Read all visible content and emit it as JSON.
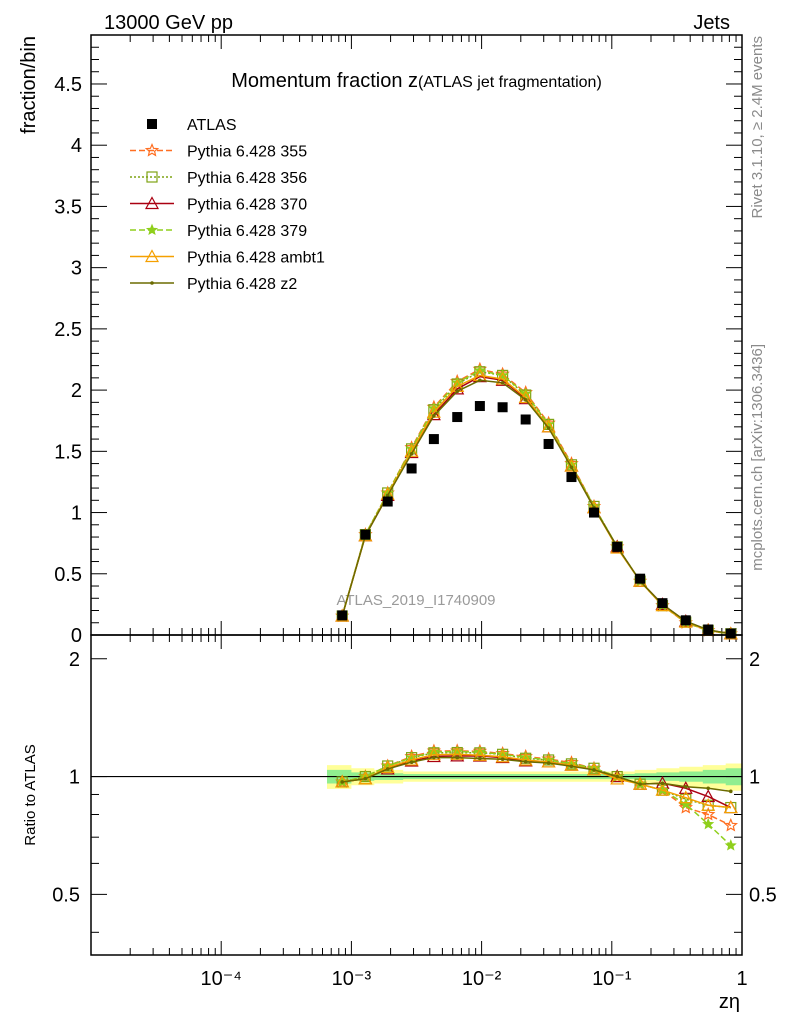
{
  "header": {
    "left": "13000 GeV pp",
    "right": "Jets"
  },
  "side_labels": {
    "rivet": "Rivet 3.1.10, ≥ 2.4M events",
    "mcplots": "mcplots.cern.ch [arXiv:1306.3436]"
  },
  "chart_data": {
    "type": "line",
    "title": "Momentum fraction z",
    "subtitle": "(ATLAS jet fragmentation)",
    "watermark": "ATLAS_2019_I1740909",
    "xlabel": "zη",
    "x_scale": "log",
    "xlim": [
      1e-05,
      1
    ],
    "x_tick_labels": [
      "10⁻⁴",
      "10⁻³",
      "10⁻²",
      "10⁻¹",
      "1"
    ],
    "x_tick_values": [
      0.0001,
      0.001,
      0.01,
      0.1,
      1
    ],
    "legend_position": "top-left",
    "x": [
      0.00085,
      0.00128,
      0.0019,
      0.0029,
      0.0043,
      0.0065,
      0.0097,
      0.0145,
      0.0218,
      0.0327,
      0.049,
      0.073,
      0.11,
      0.165,
      0.245,
      0.37,
      0.55,
      0.82
    ],
    "main": {
      "ylabel": "fraction/bin",
      "ylim": [
        0,
        4.9
      ],
      "y_ticks": [
        0,
        0.5,
        1,
        1.5,
        2,
        2.5,
        3,
        3.5,
        4,
        4.5
      ],
      "y_tick_labels": [
        "0",
        "0.5",
        "1",
        "1.5",
        "2",
        "2.5",
        "3",
        "3.5",
        "4",
        "4.5"
      ],
      "data": {
        "name": "ATLAS",
        "values": [
          0.16,
          0.82,
          1.09,
          1.36,
          1.6,
          1.78,
          1.87,
          1.86,
          1.76,
          1.56,
          1.29,
          1.0,
          0.72,
          0.46,
          0.26,
          0.12,
          0.045,
          0.012
        ]
      },
      "series": [
        {
          "name": "Pythia 6.428 355",
          "color": "#ff6f22",
          "dash": "6,3",
          "marker": "star-open",
          "values": [
            0.155,
            0.82,
            1.16,
            1.53,
            1.86,
            2.07,
            2.17,
            2.13,
            1.98,
            1.73,
            1.4,
            1.05,
            0.72,
            0.44,
            0.24,
            0.1,
            0.036,
            0.009
          ]
        },
        {
          "name": "Pythia 6.428 356",
          "color": "#7fa314",
          "dash": "2,2",
          "marker": "square-open",
          "values": [
            0.155,
            0.82,
            1.16,
            1.52,
            1.84,
            2.05,
            2.15,
            2.12,
            1.96,
            1.72,
            1.39,
            1.05,
            0.72,
            0.44,
            0.24,
            0.105,
            0.038,
            0.01
          ]
        },
        {
          "name": "Pythia 6.428 370",
          "color": "#aa0011",
          "dash": "",
          "marker": "triangle-open",
          "values": [
            0.155,
            0.81,
            1.14,
            1.49,
            1.8,
            2.01,
            2.11,
            2.08,
            1.93,
            1.7,
            1.38,
            1.04,
            0.72,
            0.44,
            0.25,
            0.112,
            0.04,
            0.01
          ]
        },
        {
          "name": "Pythia 6.428 379",
          "color": "#8fcf1c",
          "dash": "6,3",
          "marker": "star-filled",
          "values": [
            0.155,
            0.82,
            1.16,
            1.52,
            1.85,
            2.06,
            2.16,
            2.12,
            1.97,
            1.72,
            1.39,
            1.05,
            0.72,
            0.44,
            0.24,
            0.102,
            0.034,
            0.008
          ]
        },
        {
          "name": "Pythia 6.428 ambt1",
          "color": "#f5a000",
          "dash": "",
          "marker": "triangle-open",
          "values": [
            0.155,
            0.81,
            1.15,
            1.5,
            1.82,
            2.03,
            2.12,
            2.09,
            1.94,
            1.7,
            1.38,
            1.04,
            0.71,
            0.44,
            0.24,
            0.106,
            0.038,
            0.01
          ]
        },
        {
          "name": "Pythia 6.428 z2",
          "color": "#6b6b00",
          "dash": "",
          "marker": "dot",
          "values": [
            0.155,
            0.81,
            1.14,
            1.48,
            1.79,
            1.99,
            2.08,
            2.06,
            1.92,
            1.69,
            1.37,
            1.04,
            0.72,
            0.44,
            0.25,
            0.113,
            0.042,
            0.011
          ]
        }
      ]
    },
    "ratio": {
      "ylabel": "Ratio to ATLAS",
      "ylim": [
        0.35,
        2.3
      ],
      "y_ticks": [
        0.5,
        1,
        2
      ],
      "y_tick_labels": [
        "0.5",
        "1",
        "2"
      ],
      "band_x": [
        0.00065,
        0.001,
        0.0015,
        0.0025,
        0.004,
        0.006,
        0.009,
        0.014,
        0.02,
        0.03,
        0.045,
        0.068,
        0.1,
        0.15,
        0.22,
        0.33,
        0.5,
        0.75,
        1
      ],
      "band_yellow_lo": [
        0.93,
        0.95,
        0.96,
        0.97,
        0.97,
        0.97,
        0.97,
        0.97,
        0.97,
        0.97,
        0.97,
        0.97,
        0.97,
        0.96,
        0.95,
        0.94,
        0.93,
        0.92,
        0.92
      ],
      "band_yellow_hi": [
        1.07,
        1.05,
        1.04,
        1.03,
        1.03,
        1.03,
        1.03,
        1.03,
        1.03,
        1.03,
        1.03,
        1.03,
        1.03,
        1.04,
        1.05,
        1.06,
        1.07,
        1.08,
        1.08
      ],
      "band_green_lo": [
        0.96,
        0.975,
        0.98,
        0.985,
        0.985,
        0.985,
        0.985,
        0.985,
        0.985,
        0.985,
        0.985,
        0.985,
        0.985,
        0.98,
        0.975,
        0.97,
        0.96,
        0.95,
        0.95
      ],
      "band_green_hi": [
        1.04,
        1.025,
        1.02,
        1.015,
        1.015,
        1.015,
        1.015,
        1.015,
        1.015,
        1.015,
        1.015,
        1.015,
        1.015,
        1.02,
        1.025,
        1.03,
        1.04,
        1.05,
        1.05
      ]
    }
  }
}
